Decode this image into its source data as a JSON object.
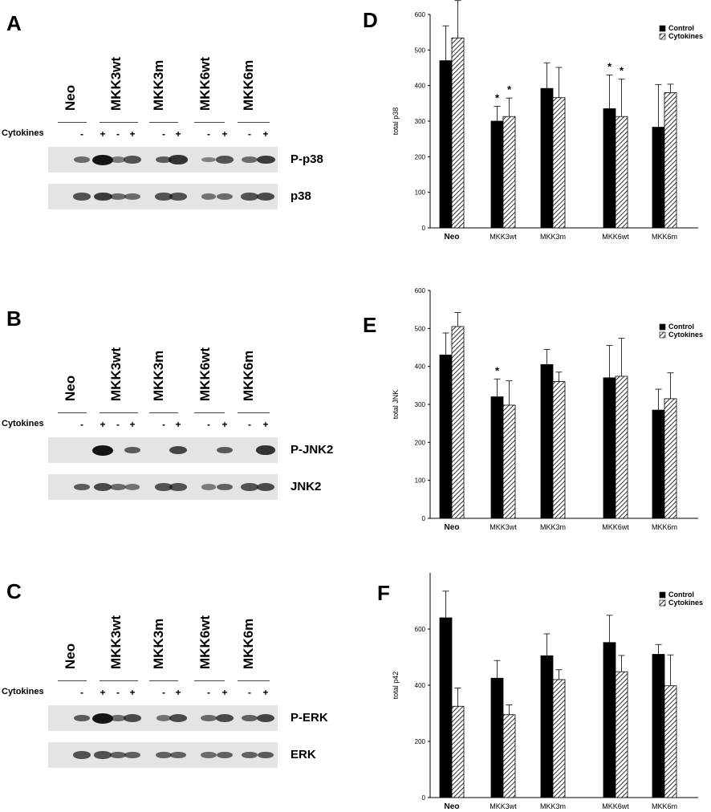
{
  "colors": {
    "control": "#000000",
    "cytokine_hatch": "#000000",
    "blot_background": "#e4e4e4",
    "band": "#141414"
  },
  "blots": [
    {
      "letter": "A",
      "lanes": [
        "Neo",
        "MKK3wt",
        "MKK3m",
        "MKK6wt",
        "MKK6m"
      ],
      "cytokines_label": "Cytokines",
      "signs": [
        "-",
        "+",
        "-",
        "+",
        "-",
        "+",
        "-",
        "+",
        "-",
        "+"
      ],
      "rows": [
        {
          "label": "P-p38",
          "intensity": [
            0.45,
            1.0,
            0.35,
            0.6,
            0.55,
            0.8,
            0.3,
            0.6,
            0.45,
            0.75
          ]
        },
        {
          "label": "p38",
          "intensity": [
            0.6,
            0.75,
            0.45,
            0.45,
            0.6,
            0.6,
            0.4,
            0.45,
            0.6,
            0.65
          ]
        }
      ]
    },
    {
      "letter": "B",
      "lanes": [
        "Neo",
        "MKK3wt",
        "MKK3m",
        "MKK6wt",
        "MKK6m"
      ],
      "cytokines_label": "Cytokines",
      "signs": [
        "-",
        "+",
        "-",
        "+",
        "-",
        "+",
        "-",
        "+",
        "-",
        "+"
      ],
      "rows": [
        {
          "label": "P-JNK2",
          "intensity": [
            0.05,
            1.0,
            0.05,
            0.55,
            0.05,
            0.7,
            0.05,
            0.55,
            0.05,
            0.8
          ]
        },
        {
          "label": "JNK2",
          "intensity": [
            0.55,
            0.65,
            0.45,
            0.4,
            0.6,
            0.6,
            0.35,
            0.5,
            0.6,
            0.65
          ]
        }
      ]
    },
    {
      "letter": "C",
      "lanes": [
        "Neo",
        "MKK3wt",
        "MKK3m",
        "MKK6wt",
        "MKK6m"
      ],
      "cytokines_label": "Cytokines",
      "signs": [
        "-",
        "+",
        "-",
        "+",
        "-",
        "+",
        "-",
        "+",
        "-",
        "+"
      ],
      "rows": [
        {
          "label": "P-ERK",
          "intensity": [
            0.55,
            1.0,
            0.45,
            0.65,
            0.4,
            0.65,
            0.45,
            0.65,
            0.5,
            0.7
          ]
        },
        {
          "label": "ERK",
          "intensity": [
            0.6,
            0.6,
            0.5,
            0.5,
            0.5,
            0.5,
            0.45,
            0.5,
            0.5,
            0.55
          ]
        }
      ]
    }
  ],
  "chart_data": [
    {
      "letter": "D",
      "type": "bar",
      "categories": [
        "Neo",
        "MKK3wt",
        "MKK3m",
        "MKK6wt",
        "MKK6m"
      ],
      "ylabel": "total p38",
      "ylim": [
        0,
        600
      ],
      "yticks": [
        0,
        100,
        200,
        300,
        400,
        500,
        600
      ],
      "legend_position": "top-right",
      "series": [
        {
          "name": "Control",
          "values": [
            470,
            300,
            392,
            335,
            283
          ],
          "errors": [
            98,
            42,
            72,
            95,
            120
          ]
        },
        {
          "name": "Cytokines",
          "values": [
            534,
            313,
            366,
            313,
            380
          ],
          "errors": [
            105,
            52,
            85,
            105,
            24
          ]
        }
      ],
      "annotations": [
        {
          "category": 1,
          "series": 0,
          "text": "*"
        },
        {
          "category": 1,
          "series": 1,
          "text": "*"
        },
        {
          "category": 3,
          "series": 0,
          "text": "*"
        },
        {
          "category": 3,
          "series": 1,
          "text": "*"
        }
      ]
    },
    {
      "letter": "E",
      "type": "bar",
      "categories": [
        "Neo",
        "MKK3wt",
        "MKK3m",
        "MKK6wt",
        "MKK6m"
      ],
      "ylabel": "total JNK",
      "ylim": [
        0,
        600
      ],
      "yticks": [
        0,
        100,
        200,
        300,
        400,
        500,
        600
      ],
      "legend_position": "top-right",
      "series": [
        {
          "name": "Control",
          "values": [
            430,
            320,
            405,
            370,
            285
          ],
          "errors": [
            58,
            47,
            40,
            85,
            55
          ]
        },
        {
          "name": "Cytokines",
          "values": [
            505,
            298,
            360,
            374,
            315
          ],
          "errors": [
            37,
            64,
            25,
            100,
            68
          ]
        }
      ],
      "annotations": [
        {
          "category": 1,
          "series": 0,
          "text": "*"
        }
      ]
    },
    {
      "letter": "F",
      "type": "bar",
      "categories": [
        "Neo",
        "MKK3wt",
        "MKK3m",
        "MKK6wt",
        "MKK6m"
      ],
      "ylabel": "total p42",
      "ylim": [
        0,
        800
      ],
      "yticks": [
        0,
        200,
        400,
        600
      ],
      "legend_position": "top-right",
      "series": [
        {
          "name": "Control",
          "values": [
            640,
            425,
            505,
            552,
            510
          ],
          "errors": [
            95,
            63,
            78,
            97,
            35
          ]
        },
        {
          "name": "Cytokines",
          "values": [
            325,
            295,
            420,
            448,
            398
          ],
          "errors": [
            65,
            35,
            35,
            58,
            110
          ]
        }
      ],
      "annotations": []
    }
  ]
}
